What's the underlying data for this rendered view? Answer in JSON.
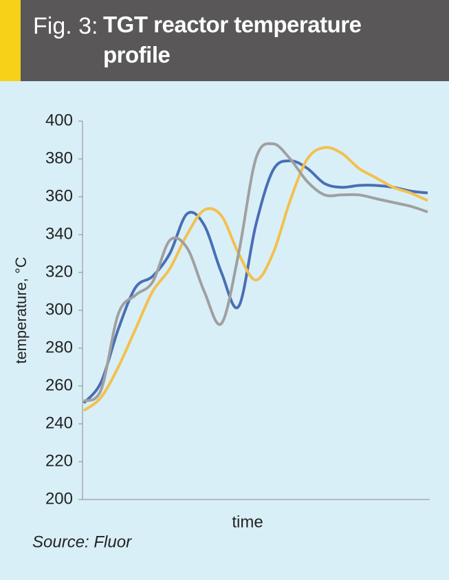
{
  "chart_data": {
    "type": "line",
    "title_label": "Fig. 3:",
    "title": "TGT reactor temperature profile",
    "ylabel": "temperature, °C",
    "xlabel": "time",
    "source": "Source: Fluor",
    "categories": [
      null,
      null,
      null,
      null,
      null,
      null,
      null,
      null,
      null,
      null,
      null,
      null,
      null,
      null,
      null,
      null,
      null,
      null,
      null,
      null,
      null
    ],
    "series": [
      {
        "color": "#4a6fb5",
        "values": [
          251,
          262,
          290,
          312,
          318,
          330,
          351,
          345,
          320,
          302,
          345,
          374,
          379,
          375,
          367,
          365,
          366,
          366,
          365,
          363,
          362
        ]
      },
      {
        "color": "#f2c14e",
        "values": [
          247,
          254,
          270,
          290,
          310,
          322,
          340,
          353,
          350,
          330,
          316,
          330,
          358,
          380,
          386,
          383,
          375,
          370,
          365,
          362,
          358
        ]
      },
      {
        "color": "#a0a0a0",
        "values": [
          252,
          258,
          298,
          308,
          315,
          337,
          333,
          310,
          293,
          330,
          380,
          388,
          380,
          368,
          361,
          361,
          361,
          359,
          357,
          355,
          352
        ]
      }
    ],
    "ylim": [
      200,
      400
    ],
    "yticks": [
      200,
      220,
      240,
      260,
      280,
      300,
      320,
      340,
      360,
      380,
      400
    ]
  }
}
